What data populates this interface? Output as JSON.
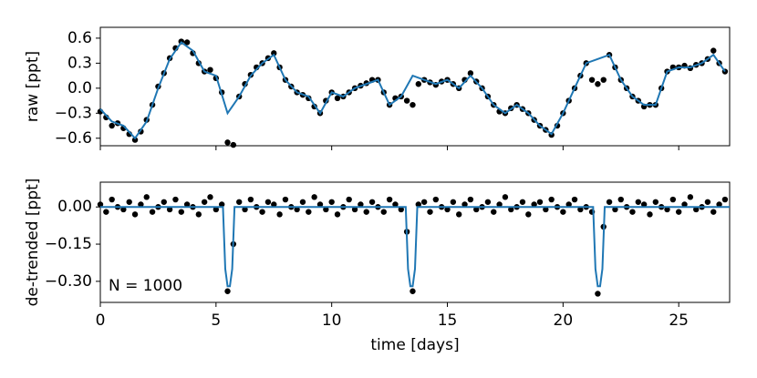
{
  "chart_data": [
    {
      "type": "scatter",
      "ylabel": "raw [ppt]",
      "xlim": [
        0,
        27.2
      ],
      "xticks": [
        0,
        5,
        10,
        15,
        20,
        25
      ],
      "show_xtick_labels": false,
      "ylim": [
        -0.69,
        0.73
      ],
      "yticks": [
        {
          "value": -0.6,
          "label": "−0.6"
        },
        {
          "value": -0.3,
          "label": "−0.3"
        },
        {
          "value": 0,
          "label": "0.0"
        },
        0.3,
        0.6
      ],
      "series": [
        {
          "style": "points",
          "color": "#000000",
          "x": [
            0,
            0.25,
            0.5,
            0.75,
            1,
            1.25,
            1.5,
            1.75,
            2,
            2.25,
            2.5,
            2.75,
            3,
            3.25,
            3.5,
            3.75,
            4,
            4.25,
            4.5,
            4.75,
            5,
            5.25,
            5.5,
            5.75,
            6,
            6.25,
            6.5,
            6.75,
            7,
            7.25,
            7.5,
            7.75,
            8,
            8.25,
            8.5,
            8.75,
            9,
            9.25,
            9.5,
            9.75,
            10,
            10.25,
            10.5,
            10.75,
            11,
            11.25,
            11.5,
            11.75,
            12,
            12.25,
            12.5,
            12.75,
            13,
            13.25,
            13.5,
            13.75,
            14,
            14.25,
            14.5,
            14.75,
            15,
            15.25,
            15.5,
            15.75,
            16,
            16.25,
            16.5,
            16.75,
            17,
            17.25,
            17.5,
            17.75,
            18,
            18.25,
            18.5,
            18.75,
            19,
            19.25,
            19.5,
            19.75,
            20,
            20.25,
            20.5,
            20.75,
            21,
            21.25,
            21.5,
            21.75,
            22,
            22.25,
            22.5,
            22.75,
            23,
            23.25,
            23.5,
            23.75,
            24,
            24.25,
            24.5,
            24.75,
            25,
            25.25,
            25.5,
            25.75,
            26,
            26.25,
            26.5,
            26.75,
            27
          ],
          "values": [
            -0.28,
            -0.35,
            -0.45,
            -0.42,
            -0.48,
            -0.55,
            -0.62,
            -0.52,
            -0.38,
            -0.2,
            0.02,
            0.18,
            0.36,
            0.48,
            0.56,
            0.55,
            0.42,
            0.3,
            0.2,
            0.22,
            0.12,
            -0.05,
            -0.65,
            -0.68,
            -0.1,
            0.05,
            0.16,
            0.25,
            0.3,
            0.36,
            0.42,
            0.25,
            0.1,
            0.02,
            -0.05,
            -0.08,
            -0.12,
            -0.22,
            -0.3,
            -0.15,
            -0.05,
            -0.12,
            -0.1,
            -0.05,
            0.0,
            0.03,
            0.06,
            0.1,
            0.1,
            -0.05,
            -0.2,
            -0.12,
            -0.1,
            -0.15,
            -0.2,
            0.05,
            0.1,
            0.07,
            0.04,
            0.08,
            0.1,
            0.05,
            0.0,
            0.1,
            0.18,
            0.08,
            0.0,
            -0.1,
            -0.2,
            -0.28,
            -0.3,
            -0.24,
            -0.2,
            -0.25,
            -0.3,
            -0.38,
            -0.45,
            -0.5,
            -0.56,
            -0.45,
            -0.3,
            -0.15,
            0.0,
            0.15,
            0.3,
            0.1,
            0.05,
            0.1,
            0.4,
            0.25,
            0.1,
            0.0,
            -0.1,
            -0.15,
            -0.22,
            -0.2,
            -0.2,
            0.0,
            0.2,
            0.25,
            0.25,
            0.27,
            0.24,
            0.28,
            0.3,
            0.35,
            0.45,
            0.3,
            0.2
          ]
        },
        {
          "style": "line",
          "color": "#1f77b4",
          "x": [
            0,
            0.5,
            1,
            1.5,
            2,
            2.5,
            3,
            3.5,
            4,
            4.5,
            5,
            5.5,
            6,
            6.5,
            7,
            7.5,
            8,
            8.5,
            9,
            9.5,
            10,
            10.5,
            11,
            11.5,
            12,
            12.5,
            13,
            13.5,
            14,
            14.5,
            15,
            15.5,
            16,
            16.5,
            17,
            17.5,
            18,
            18.5,
            19,
            19.5,
            20,
            20.5,
            21,
            21.5,
            22,
            22.5,
            23,
            23.5,
            24,
            24.5,
            25,
            25.5,
            26,
            26.5,
            27
          ],
          "values": [
            -0.25,
            -0.4,
            -0.45,
            -0.6,
            -0.4,
            0.0,
            0.35,
            0.55,
            0.45,
            0.2,
            0.15,
            -0.3,
            -0.1,
            0.15,
            0.3,
            0.4,
            0.1,
            -0.05,
            -0.1,
            -0.3,
            -0.05,
            -0.1,
            0.0,
            0.05,
            0.1,
            -0.2,
            -0.1,
            0.15,
            0.1,
            0.05,
            0.1,
            0.0,
            0.15,
            0.0,
            -0.2,
            -0.3,
            -0.2,
            -0.3,
            -0.45,
            -0.55,
            -0.3,
            0.0,
            0.3,
            0.35,
            0.4,
            0.1,
            -0.1,
            -0.2,
            -0.2,
            0.2,
            0.25,
            0.25,
            0.3,
            0.4,
            0.2
          ]
        }
      ]
    },
    {
      "type": "scatter",
      "ylabel": "de-trended [ppt]",
      "xlabel": "time [days]",
      "annotation": "N = 1000",
      "xlim": [
        0,
        27.2
      ],
      "xticks": [
        0,
        5,
        10,
        15,
        20,
        25
      ],
      "show_xtick_labels": true,
      "ylim": [
        -0.385,
        0.1
      ],
      "yticks": [
        {
          "value": -0.3,
          "label": "−0.30"
        },
        {
          "value": -0.15,
          "label": "−0.15"
        },
        {
          "value": 0,
          "label": "0.00"
        }
      ],
      "series": [
        {
          "style": "points",
          "color": "#000000",
          "x": [
            0,
            0.25,
            0.5,
            0.75,
            1,
            1.25,
            1.5,
            1.75,
            2,
            2.25,
            2.5,
            2.75,
            3,
            3.25,
            3.5,
            3.75,
            4,
            4.25,
            4.5,
            4.75,
            5,
            5.25,
            5.5,
            5.75,
            6,
            6.25,
            6.5,
            6.75,
            7,
            7.25,
            7.5,
            7.75,
            8,
            8.25,
            8.5,
            8.75,
            9,
            9.25,
            9.5,
            9.75,
            10,
            10.25,
            10.5,
            10.75,
            11,
            11.25,
            11.5,
            11.75,
            12,
            12.25,
            12.5,
            12.75,
            13,
            13.25,
            13.5,
            13.75,
            14,
            14.25,
            14.5,
            14.75,
            15,
            15.25,
            15.5,
            15.75,
            16,
            16.25,
            16.5,
            16.75,
            17,
            17.25,
            17.5,
            17.75,
            18,
            18.25,
            18.5,
            18.75,
            19,
            19.25,
            19.5,
            19.75,
            20,
            20.25,
            20.5,
            20.75,
            21,
            21.25,
            21.5,
            21.75,
            22,
            22.25,
            22.5,
            22.75,
            23,
            23.25,
            23.5,
            23.75,
            24,
            24.25,
            24.5,
            24.75,
            25,
            25.25,
            25.5,
            25.75,
            26,
            26.25,
            26.5,
            26.75,
            27
          ],
          "values": [
            0.01,
            -0.02,
            0.03,
            0.0,
            -0.01,
            0.02,
            -0.03,
            0.01,
            0.04,
            -0.02,
            0.0,
            0.02,
            -0.01,
            0.03,
            -0.02,
            0.01,
            0.0,
            -0.03,
            0.02,
            0.04,
            -0.01,
            0.01,
            -0.34,
            -0.15,
            0.02,
            -0.01,
            0.03,
            0.0,
            -0.02,
            0.02,
            0.01,
            -0.03,
            0.03,
            0.0,
            -0.01,
            0.02,
            -0.02,
            0.04,
            0.01,
            -0.01,
            0.02,
            -0.03,
            0.0,
            0.03,
            -0.01,
            0.01,
            -0.02,
            0.02,
            0.0,
            -0.02,
            0.03,
            0.01,
            -0.01,
            -0.1,
            -0.34,
            0.01,
            0.02,
            -0.02,
            0.03,
            0.0,
            -0.01,
            0.02,
            -0.03,
            0.01,
            0.03,
            -0.01,
            0.0,
            0.02,
            -0.02,
            0.01,
            0.04,
            -0.01,
            0.0,
            0.02,
            -0.03,
            0.01,
            0.02,
            -0.01,
            0.03,
            0.0,
            -0.02,
            0.01,
            0.03,
            -0.01,
            0.0,
            -0.02,
            -0.35,
            -0.08,
            0.02,
            -0.01,
            0.03,
            0.0,
            -0.02,
            0.02,
            0.01,
            -0.03,
            0.02,
            0.0,
            -0.01,
            0.03,
            -0.02,
            0.01,
            0.04,
            -0.01,
            0.0,
            0.02,
            -0.02,
            0.01,
            0.03
          ]
        },
        {
          "style": "line",
          "color": "#1f77b4",
          "x": [
            0,
            5.3,
            5.4,
            5.5,
            5.6,
            5.7,
            5.8,
            13.2,
            13.3,
            13.4,
            13.5,
            13.6,
            13.7,
            21.3,
            21.4,
            21.5,
            21.6,
            21.7,
            21.8,
            27.2
          ],
          "values": [
            0,
            0,
            -0.25,
            -0.32,
            -0.32,
            -0.25,
            0,
            0,
            -0.25,
            -0.32,
            -0.32,
            -0.25,
            0,
            0,
            -0.25,
            -0.32,
            -0.32,
            -0.25,
            0,
            0
          ]
        }
      ]
    }
  ]
}
